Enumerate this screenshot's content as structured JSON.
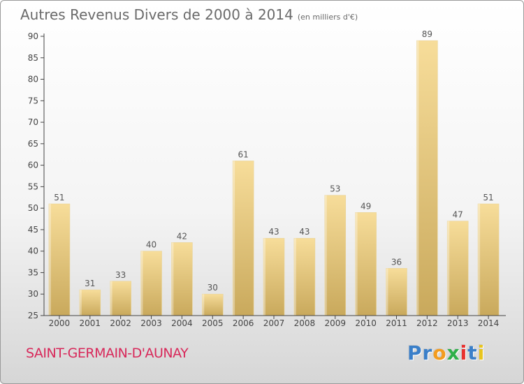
{
  "header": {
    "title": "Autres Revenus Divers de 2000 à 2014",
    "unit": "(en milliers d'€)"
  },
  "footer": {
    "location": "SAINT-GERMAIN-D'AUNAY",
    "logo": "Proxiti"
  },
  "colors": {
    "bar_light": "#f7dd9a",
    "bar_dark": "#c9a95c",
    "location": "#d8285a",
    "logo_letters": [
      "#3a7fc9",
      "#3a7fc9",
      "#f39c1f",
      "#2fb04a",
      "#e8312f",
      "#3a7fc9",
      "#e8c51f"
    ]
  },
  "chart_data": {
    "type": "bar",
    "title": "Autres Revenus Divers de 2000 à 2014",
    "subtitle": "(en milliers d'€)",
    "categories": [
      "2000",
      "2001",
      "2002",
      "2003",
      "2004",
      "2005",
      "2006",
      "2007",
      "2008",
      "2009",
      "2010",
      "2011",
      "2012",
      "2013",
      "2014"
    ],
    "values": [
      51,
      31,
      33,
      40,
      42,
      30,
      61,
      43,
      43,
      53,
      49,
      36,
      89,
      47,
      51
    ],
    "ylim": [
      25,
      90
    ],
    "yticks": [
      25,
      30,
      35,
      40,
      45,
      50,
      55,
      60,
      65,
      70,
      75,
      80,
      85,
      90
    ],
    "grid": false,
    "data_labels": true,
    "legend": "none"
  }
}
